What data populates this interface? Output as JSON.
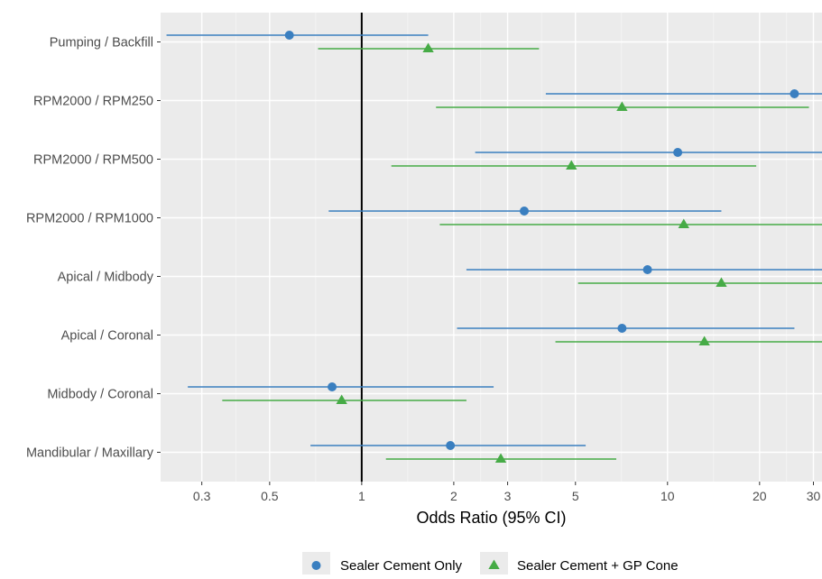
{
  "chart_data": {
    "type": "forest",
    "xlabel": "Odds Ratio (95% CI)",
    "x_scale": "log",
    "xlim": [
      0.22,
      32
    ],
    "reference_line": 1,
    "x_ticks": [
      0.3,
      0.5,
      1,
      2,
      3,
      5,
      10,
      20,
      30
    ],
    "x_tick_labels": [
      "0.3",
      "0.5",
      "1",
      "2",
      "3",
      "5",
      "10",
      "20",
      "30"
    ],
    "categories": [
      "Pumping / Backfill",
      "RPM2000 / RPM250",
      "RPM2000 / RPM500",
      "RPM2000 / RPM1000",
      "Apical / Midbody",
      "Apical / Coronal",
      "Midbody / Coronal",
      "Mandibular / Maxillary"
    ],
    "series": [
      {
        "name": "Sealer Cement Only",
        "color": "#3a7fc0",
        "marker": "circle",
        "estimates": [
          0.58,
          26,
          10.8,
          3.4,
          8.6,
          7.1,
          0.8,
          1.95
        ],
        "lower": [
          0.23,
          4.0,
          2.35,
          0.78,
          2.2,
          2.05,
          0.27,
          0.68
        ],
        "upper": [
          1.65,
          32,
          32,
          15,
          32,
          26,
          2.7,
          5.4
        ]
      },
      {
        "name": "Sealer Cement + GP Cone",
        "color": "#46ab46",
        "marker": "triangle",
        "estimates": [
          1.65,
          7.1,
          4.85,
          11.3,
          15.0,
          13.2,
          0.86,
          2.85
        ],
        "lower": [
          0.72,
          1.75,
          1.25,
          1.8,
          5.1,
          4.3,
          0.35,
          1.2
        ],
        "upper": [
          3.8,
          29,
          19.5,
          32,
          32,
          32,
          2.2,
          6.8
        ]
      }
    ],
    "legend_position": "bottom",
    "grid": true
  }
}
